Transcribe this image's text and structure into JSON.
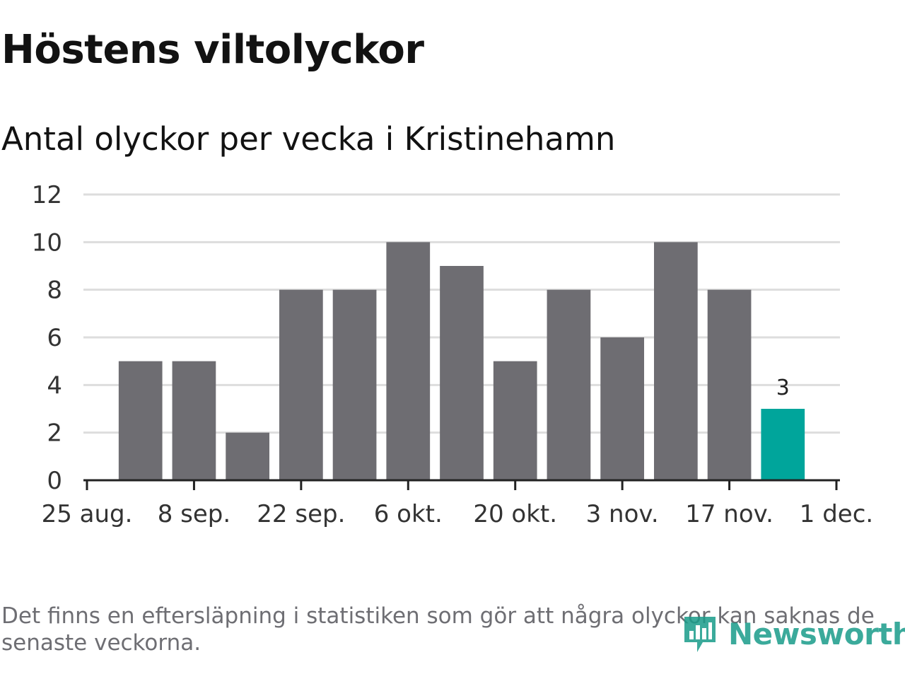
{
  "header": {
    "title": "Höstens viltolyckor",
    "subtitle": "Antal olyckor per vecka i Kristinehamn"
  },
  "footer": {
    "note": "Det finns en eftersläpning i statistiken som gör att några olyckor kan saknas de senaste veckorna.",
    "brand": "Newsworthy",
    "brand_icon": "newsworthy-logo-icon"
  },
  "colors": {
    "bar": "#6e6d72",
    "highlight": "#00a59b",
    "grid": "#dddddd",
    "axis": "#222222"
  },
  "chart_data": {
    "type": "bar",
    "title": "Höstens viltolyckor",
    "subtitle": "Antal olyckor per vecka i Kristinehamn",
    "xlabel": "",
    "ylabel": "",
    "ylim": [
      0,
      12
    ],
    "yticks": [
      0,
      2,
      4,
      6,
      8,
      10,
      12
    ],
    "x_axis": {
      "start": "2025-08-25",
      "end": "2025-12-01",
      "tick_dates": [
        "2025-08-25",
        "2025-09-08",
        "2025-09-22",
        "2025-10-06",
        "2025-10-20",
        "2025-11-03",
        "2025-11-17",
        "2025-12-01"
      ],
      "tick_labels": [
        "25 aug.",
        "8 sep.",
        "22 sep.",
        "6 okt.",
        "20 okt.",
        "3 nov.",
        "17 nov.",
        "1 dec."
      ]
    },
    "bars": [
      {
        "week_start": "2025-08-25",
        "value": 5
      },
      {
        "week_start": "2025-09-01",
        "value": 5
      },
      {
        "week_start": "2025-09-08",
        "value": 2
      },
      {
        "week_start": "2025-09-15",
        "value": 8
      },
      {
        "week_start": "2025-09-22",
        "value": 8
      },
      {
        "week_start": "2025-09-29",
        "value": 10
      },
      {
        "week_start": "2025-10-06",
        "value": 9
      },
      {
        "week_start": "2025-10-13",
        "value": 5
      },
      {
        "week_start": "2025-10-20",
        "value": 8
      },
      {
        "week_start": "2025-10-27",
        "value": 6
      },
      {
        "week_start": "2025-11-03",
        "value": 10
      },
      {
        "week_start": "2025-11-10",
        "value": 8
      },
      {
        "week_start": "2025-11-17",
        "value": 3,
        "highlight": true,
        "label": "3"
      }
    ],
    "grid": true,
    "legend": "none"
  }
}
